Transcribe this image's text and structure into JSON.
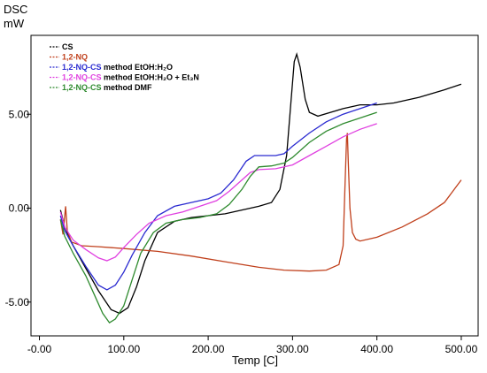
{
  "chart_data": {
    "type": "line",
    "ylabel_top": "DSC",
    "ylabel_unit": "mW",
    "xlabel": "Temp  [C]",
    "xlim": [
      -10,
      520
    ],
    "ylim": [
      -6.8,
      9.2
    ],
    "x_ticks": [
      "-0.00",
      "100.00",
      "200.00",
      "300.00",
      "400.00",
      "500.00"
    ],
    "x_tick_values": [
      0,
      100,
      200,
      300,
      400,
      500
    ],
    "y_ticks": [
      "5.00",
      "0.00",
      "-5.00"
    ],
    "y_tick_values": [
      5,
      0,
      -5
    ],
    "grid": false,
    "legend_position": "top-left",
    "series": [
      {
        "name": "CS",
        "color": "#000000",
        "legend_parts": [
          {
            "t": "CS",
            "c": "#000000"
          }
        ],
        "points": [
          [
            25,
            -0.1
          ],
          [
            30,
            -1.0
          ],
          [
            40,
            -2.0
          ],
          [
            55,
            -3.2
          ],
          [
            70,
            -4.4
          ],
          [
            85,
            -5.4
          ],
          [
            95,
            -5.6
          ],
          [
            105,
            -5.3
          ],
          [
            115,
            -4.2
          ],
          [
            125,
            -2.8
          ],
          [
            140,
            -1.3
          ],
          [
            160,
            -0.7
          ],
          [
            180,
            -0.5
          ],
          [
            200,
            -0.4
          ],
          [
            220,
            -0.3
          ],
          [
            240,
            -0.1
          ],
          [
            260,
            0.1
          ],
          [
            275,
            0.3
          ],
          [
            285,
            1.0
          ],
          [
            293,
            2.8
          ],
          [
            298,
            5.6
          ],
          [
            302,
            7.8
          ],
          [
            305,
            8.2
          ],
          [
            309,
            7.5
          ],
          [
            315,
            5.8
          ],
          [
            320,
            5.1
          ],
          [
            330,
            4.9
          ],
          [
            345,
            5.1
          ],
          [
            360,
            5.3
          ],
          [
            380,
            5.5
          ],
          [
            400,
            5.5
          ],
          [
            420,
            5.6
          ],
          [
            450,
            5.9
          ],
          [
            480,
            6.3
          ],
          [
            500,
            6.6
          ]
        ]
      },
      {
        "name": "1,2-NQ",
        "color": "#c0401c",
        "legend_parts": [
          {
            "t": "1,2-NQ",
            "c": "#c0401c"
          }
        ],
        "points": [
          [
            25,
            -0.6
          ],
          [
            28,
            -1.4
          ],
          [
            31,
            0.1
          ],
          [
            33,
            -1.2
          ],
          [
            38,
            -1.8
          ],
          [
            50,
            -2.0
          ],
          [
            70,
            -2.05
          ],
          [
            100,
            -2.15
          ],
          [
            140,
            -2.3
          ],
          [
            180,
            -2.55
          ],
          [
            220,
            -2.85
          ],
          [
            260,
            -3.15
          ],
          [
            290,
            -3.3
          ],
          [
            320,
            -3.35
          ],
          [
            340,
            -3.3
          ],
          [
            355,
            -3.0
          ],
          [
            360,
            -2.0
          ],
          [
            362,
            1.0
          ],
          [
            364,
            3.7
          ],
          [
            365,
            4.0
          ],
          [
            366,
            2.5
          ],
          [
            368,
            0.0
          ],
          [
            371,
            -1.3
          ],
          [
            375,
            -1.65
          ],
          [
            380,
            -1.75
          ],
          [
            400,
            -1.55
          ],
          [
            430,
            -1.0
          ],
          [
            460,
            -0.3
          ],
          [
            480,
            0.3
          ],
          [
            490,
            0.9
          ],
          [
            500,
            1.5
          ]
        ]
      },
      {
        "name": "1,2-NQ-CS method EtOH:H2O",
        "color": "#2a2ad0",
        "legend_parts": [
          {
            "t": "1,2-NQ-CS",
            "c": "#2a2ad0"
          },
          {
            "t": " method EtOH:H₂O",
            "c": "#000000"
          }
        ],
        "points": [
          [
            25,
            -0.4
          ],
          [
            30,
            -1.2
          ],
          [
            40,
            -2.0
          ],
          [
            55,
            -3.1
          ],
          [
            70,
            -4.1
          ],
          [
            80,
            -4.35
          ],
          [
            90,
            -4.1
          ],
          [
            100,
            -3.4
          ],
          [
            110,
            -2.5
          ],
          [
            125,
            -1.3
          ],
          [
            140,
            -0.4
          ],
          [
            160,
            0.1
          ],
          [
            180,
            0.3
          ],
          [
            200,
            0.5
          ],
          [
            215,
            0.8
          ],
          [
            230,
            1.5
          ],
          [
            245,
            2.5
          ],
          [
            255,
            2.8
          ],
          [
            265,
            2.8
          ],
          [
            280,
            2.8
          ],
          [
            290,
            2.9
          ],
          [
            300,
            3.3
          ],
          [
            320,
            4.0
          ],
          [
            340,
            4.6
          ],
          [
            360,
            5.0
          ],
          [
            380,
            5.3
          ],
          [
            400,
            5.6
          ]
        ]
      },
      {
        "name": "1,2-NQ-CS method EtOH:H2O + Et3N",
        "color": "#e040e0",
        "legend_parts": [
          {
            "t": "1,2-NQ-CS",
            "c": "#e040e0"
          },
          {
            "t": " method EtOH:H₂O + Et₃N",
            "c": "#000000"
          }
        ],
        "points": [
          [
            25,
            -0.2
          ],
          [
            30,
            -1.0
          ],
          [
            40,
            -1.7
          ],
          [
            55,
            -2.2
          ],
          [
            70,
            -2.65
          ],
          [
            80,
            -2.8
          ],
          [
            90,
            -2.6
          ],
          [
            100,
            -2.1
          ],
          [
            115,
            -1.4
          ],
          [
            130,
            -0.8
          ],
          [
            150,
            -0.4
          ],
          [
            170,
            -0.2
          ],
          [
            190,
            0.1
          ],
          [
            210,
            0.4
          ],
          [
            225,
            0.9
          ],
          [
            240,
            1.5
          ],
          [
            250,
            1.9
          ],
          [
            260,
            2.05
          ],
          [
            280,
            2.1
          ],
          [
            300,
            2.3
          ],
          [
            320,
            2.8
          ],
          [
            340,
            3.3
          ],
          [
            360,
            3.8
          ],
          [
            380,
            4.2
          ],
          [
            400,
            4.5
          ]
        ]
      },
      {
        "name": "1,2-NQ-CS method DMF",
        "color": "#2e8a2e",
        "legend_parts": [
          {
            "t": "1,2-NQ-CS",
            "c": "#2e8a2e"
          },
          {
            "t": " method DMF",
            "c": "#000000"
          }
        ],
        "points": [
          [
            25,
            -0.6
          ],
          [
            30,
            -1.5
          ],
          [
            40,
            -2.4
          ],
          [
            55,
            -3.6
          ],
          [
            65,
            -4.6
          ],
          [
            75,
            -5.6
          ],
          [
            83,
            -6.1
          ],
          [
            90,
            -5.9
          ],
          [
            100,
            -5.2
          ],
          [
            110,
            -3.8
          ],
          [
            120,
            -2.4
          ],
          [
            135,
            -1.3
          ],
          [
            150,
            -0.8
          ],
          [
            170,
            -0.6
          ],
          [
            190,
            -0.5
          ],
          [
            210,
            -0.3
          ],
          [
            225,
            0.2
          ],
          [
            240,
            1.0
          ],
          [
            250,
            1.7
          ],
          [
            260,
            2.2
          ],
          [
            275,
            2.25
          ],
          [
            290,
            2.4
          ],
          [
            300,
            2.7
          ],
          [
            320,
            3.5
          ],
          [
            340,
            4.1
          ],
          [
            360,
            4.5
          ],
          [
            380,
            4.8
          ],
          [
            400,
            5.1
          ]
        ]
      }
    ]
  }
}
